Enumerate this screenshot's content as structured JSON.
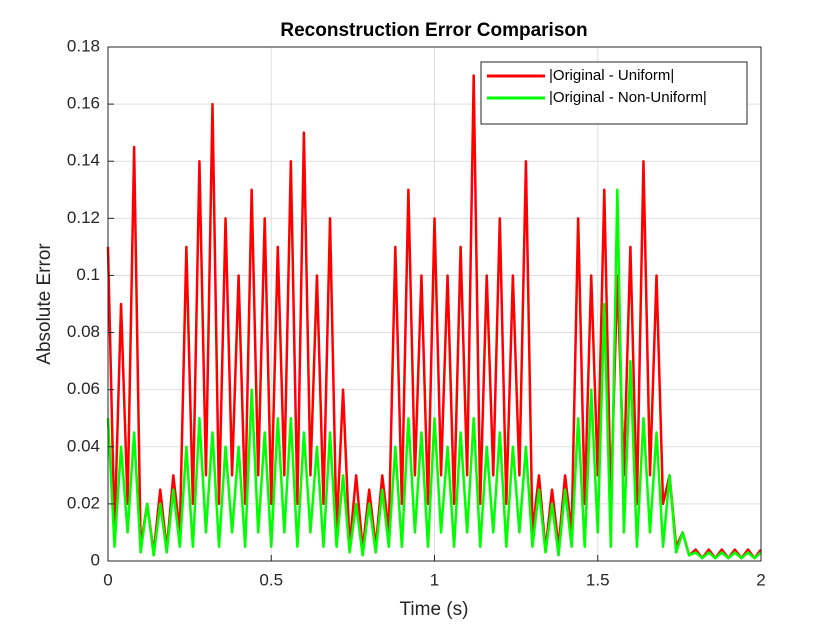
{
  "chart_data": {
    "type": "line",
    "title": "Reconstruction Error Comparison",
    "x_label": "Time (s)",
    "y_label": "Absolute Error",
    "x": [
      0,
      0.02,
      0.04,
      0.06,
      0.08,
      0.1,
      0.12,
      0.14,
      0.16,
      0.18,
      0.2,
      0.22,
      0.24,
      0.26,
      0.28,
      0.3,
      0.32,
      0.34,
      0.36,
      0.38,
      0.4,
      0.42,
      0.44,
      0.46,
      0.48,
      0.5,
      0.52,
      0.54,
      0.56,
      0.58,
      0.6,
      0.62,
      0.64,
      0.66,
      0.68,
      0.7,
      0.72,
      0.74,
      0.76,
      0.78,
      0.8,
      0.82,
      0.84,
      0.86,
      0.88,
      0.9,
      0.92,
      0.94,
      0.96,
      0.98,
      1,
      1.02,
      1.04,
      1.06,
      1.08,
      1.1,
      1.12,
      1.14,
      1.16,
      1.18,
      1.2,
      1.22,
      1.24,
      1.26,
      1.28,
      1.3,
      1.32,
      1.34,
      1.36,
      1.38,
      1.4,
      1.42,
      1.44,
      1.46,
      1.48,
      1.5,
      1.52,
      1.54,
      1.56,
      1.58,
      1.6,
      1.62,
      1.64,
      1.66,
      1.68,
      1.7,
      1.72,
      1.74,
      1.76,
      1.78,
      1.8,
      1.82,
      1.84,
      1.86,
      1.88,
      1.9,
      1.92,
      1.94,
      1.96,
      1.98,
      2
    ],
    "series": [
      {
        "name": "|Original - Uniform|",
        "color": "#ff0000",
        "values": [
          0.11,
          0.01,
          0.09,
          0.02,
          0.145,
          0.005,
          0.02,
          0.003,
          0.025,
          0.004,
          0.03,
          0.01,
          0.11,
          0.02,
          0.14,
          0.03,
          0.16,
          0.02,
          0.12,
          0.03,
          0.1,
          0.02,
          0.13,
          0.03,
          0.12,
          0.02,
          0.11,
          0.03,
          0.14,
          0.02,
          0.15,
          0.03,
          0.1,
          0.02,
          0.12,
          0.01,
          0.06,
          0.005,
          0.03,
          0.004,
          0.025,
          0.005,
          0.03,
          0.01,
          0.11,
          0.02,
          0.13,
          0.03,
          0.1,
          0.02,
          0.12,
          0.03,
          0.1,
          0.02,
          0.11,
          0.03,
          0.17,
          0.02,
          0.1,
          0.03,
          0.12,
          0.02,
          0.1,
          0.03,
          0.14,
          0.01,
          0.03,
          0.004,
          0.025,
          0.005,
          0.03,
          0.01,
          0.12,
          0.02,
          0.1,
          0.03,
          0.13,
          0.02,
          0.1,
          0.03,
          0.11,
          0.02,
          0.14,
          0.03,
          0.1,
          0.02,
          0.03,
          0.005,
          0.01,
          0.002,
          0.004,
          0.001,
          0.004,
          0.001,
          0.004,
          0.001,
          0.004,
          0.001,
          0.004,
          0.001,
          0.004
        ]
      },
      {
        "name": "|Original - Non-Uniform|",
        "color": "#00ff00",
        "values": [
          0.05,
          0.005,
          0.04,
          0.01,
          0.045,
          0.003,
          0.02,
          0.002,
          0.02,
          0.003,
          0.025,
          0.005,
          0.04,
          0.005,
          0.05,
          0.01,
          0.045,
          0.005,
          0.04,
          0.01,
          0.04,
          0.005,
          0.06,
          0.01,
          0.045,
          0.005,
          0.05,
          0.01,
          0.05,
          0.005,
          0.045,
          0.01,
          0.04,
          0.005,
          0.045,
          0.005,
          0.03,
          0.003,
          0.02,
          0.002,
          0.02,
          0.003,
          0.025,
          0.005,
          0.04,
          0.005,
          0.05,
          0.01,
          0.045,
          0.005,
          0.05,
          0.01,
          0.04,
          0.005,
          0.045,
          0.01,
          0.05,
          0.005,
          0.04,
          0.01,
          0.045,
          0.005,
          0.04,
          0.01,
          0.04,
          0.005,
          0.025,
          0.003,
          0.02,
          0.002,
          0.025,
          0.005,
          0.05,
          0.005,
          0.06,
          0.01,
          0.09,
          0.005,
          0.13,
          0.01,
          0.07,
          0.005,
          0.05,
          0.01,
          0.045,
          0.005,
          0.03,
          0.003,
          0.01,
          0.002,
          0.003,
          0.001,
          0.003,
          0.001,
          0.003,
          0.001,
          0.003,
          0.001,
          0.003,
          0.001,
          0.003
        ]
      }
    ],
    "xlim": [
      0,
      2
    ],
    "xticks": [
      0,
      0.5,
      1,
      1.5,
      2
    ],
    "ylim": [
      0,
      0.18
    ],
    "yticks": [
      0,
      0.02,
      0.04,
      0.06,
      0.08,
      0.1,
      0.12,
      0.14,
      0.16,
      0.18
    ],
    "grid": true,
    "legend_position": "top-right"
  }
}
